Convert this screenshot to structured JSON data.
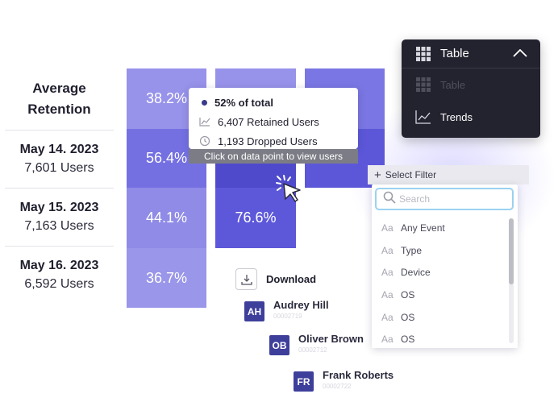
{
  "retention": {
    "header_line1": "Average",
    "header_line2": "Retention",
    "rows": [
      {
        "date": "May 14. 2023",
        "users": "7,601 Users"
      },
      {
        "date": "May 15. 2023",
        "users": "7,163 Users"
      },
      {
        "date": "May 16. 2023",
        "users": "6,592 Users"
      }
    ]
  },
  "heatmap": {
    "col1": [
      "38.2%",
      "56.4%",
      "44.1%",
      "36.7%"
    ],
    "col2": [
      "",
      "",
      "76.6%"
    ],
    "col3": [
      "",
      ""
    ],
    "colors": {
      "light": "#8f8be6",
      "mid": "#7470e2",
      "dark": "#5651d6",
      "header": "#9792ea"
    }
  },
  "tooltip": {
    "total": "52% of total",
    "retained": "6,407 Retained Users",
    "dropped": "1,193 Dropped Users",
    "hint": "Click on data point to view users"
  },
  "view_dropdown": {
    "selected": "Table",
    "options": [
      {
        "label": "Table",
        "icon": "grid-icon",
        "disabled": true
      },
      {
        "label": "Trends",
        "icon": "line-chart-icon",
        "disabled": false
      }
    ]
  },
  "filter": {
    "button_label": "Select Filter",
    "search_placeholder": "Search",
    "options": [
      "Any Event",
      "Type",
      "Device",
      "OS",
      "OS",
      "OS"
    ]
  },
  "download_label": "Download",
  "users": [
    {
      "initials": "AH",
      "name": "Audrey Hill",
      "id": "00002719"
    },
    {
      "initials": "OB",
      "name": "Oliver Brown",
      "id": "00002712"
    },
    {
      "initials": "FR",
      "name": "Frank Roberts",
      "id": "00002722"
    }
  ]
}
